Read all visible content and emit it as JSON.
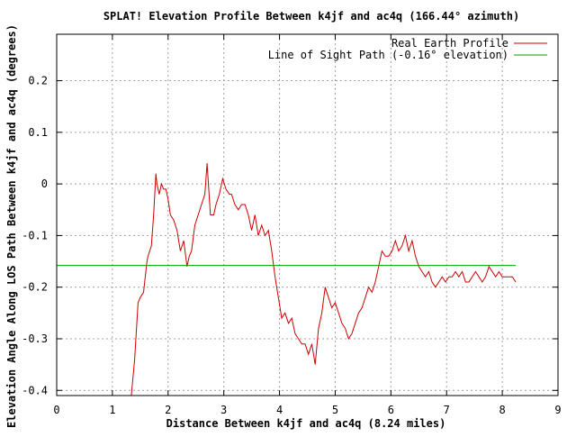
{
  "chart_data": {
    "type": "line",
    "title": "SPLAT! Elevation Profile Between k4jf and ac4q (166.44° azimuth)",
    "xlabel": "Distance Between k4jf and ac4q (8.24 miles)",
    "ylabel": "Elevation Angle Along LOS Path Between k4jf and ac4q (degrees)",
    "xlim": [
      0,
      9
    ],
    "ylim": [
      -0.41,
      0.29
    ],
    "x_ticks": [
      0,
      1,
      2,
      3,
      4,
      5,
      6,
      7,
      8,
      9
    ],
    "x_tick_labels": [
      "0",
      "1",
      "2",
      "3",
      "4",
      "5",
      "6",
      "7",
      "8",
      "9"
    ],
    "y_ticks": [
      0.2,
      0.1,
      0,
      -0.1,
      -0.2,
      -0.3,
      -0.4
    ],
    "y_tick_labels": [
      "0.2",
      "0.1",
      "0",
      "-0.1",
      "-0.2",
      "-0.3",
      "-0.4"
    ],
    "grid": true,
    "legend_position": "top-right",
    "series": [
      {
        "name": "Real Earth Profile",
        "color": "#cc0000",
        "x": [
          1.34,
          1.4,
          1.46,
          1.5,
          1.56,
          1.62,
          1.64,
          1.7,
          1.74,
          1.78,
          1.8,
          1.84,
          1.88,
          1.92,
          1.96,
          2.0,
          2.04,
          2.1,
          2.16,
          2.22,
          2.28,
          2.34,
          2.38,
          2.42,
          2.48,
          2.54,
          2.6,
          2.66,
          2.7,
          2.76,
          2.82,
          2.86,
          2.92,
          2.98,
          3.04,
          3.1,
          3.14,
          3.2,
          3.26,
          3.32,
          3.38,
          3.44,
          3.5,
          3.56,
          3.62,
          3.68,
          3.74,
          3.8,
          3.86,
          3.92,
          3.98,
          4.04,
          4.1,
          4.16,
          4.22,
          4.28,
          4.34,
          4.4,
          4.46,
          4.52,
          4.58,
          4.64,
          4.7,
          4.76,
          4.82,
          4.88,
          4.94,
          5.0,
          5.06,
          5.12,
          5.18,
          5.24,
          5.3,
          5.36,
          5.42,
          5.48,
          5.54,
          5.6,
          5.66,
          5.72,
          5.78,
          5.84,
          5.9,
          5.96,
          6.02,
          6.08,
          6.14,
          6.2,
          6.26,
          6.32,
          6.38,
          6.44,
          6.5,
          6.56,
          6.62,
          6.68,
          6.74,
          6.8,
          6.86,
          6.92,
          6.98,
          7.04,
          7.1,
          7.16,
          7.22,
          7.28,
          7.34,
          7.4,
          7.46,
          7.52,
          7.58,
          7.64,
          7.7,
          7.76,
          7.82,
          7.88,
          7.94,
          8.0,
          8.06,
          8.12,
          8.18,
          8.24
        ],
        "y": [
          -0.41,
          -0.34,
          -0.23,
          -0.22,
          -0.21,
          -0.15,
          -0.14,
          -0.12,
          -0.06,
          0.02,
          0.0,
          -0.02,
          0.0,
          -0.01,
          -0.01,
          -0.03,
          -0.06,
          -0.07,
          -0.09,
          -0.13,
          -0.11,
          -0.16,
          -0.14,
          -0.13,
          -0.08,
          -0.06,
          -0.04,
          -0.02,
          0.04,
          -0.06,
          -0.06,
          -0.04,
          -0.02,
          0.01,
          -0.01,
          -0.02,
          -0.02,
          -0.04,
          -0.05,
          -0.04,
          -0.04,
          -0.06,
          -0.09,
          -0.06,
          -0.1,
          -0.08,
          -0.1,
          -0.09,
          -0.13,
          -0.18,
          -0.22,
          -0.26,
          -0.25,
          -0.27,
          -0.26,
          -0.29,
          -0.3,
          -0.31,
          -0.31,
          -0.33,
          -0.31,
          -0.35,
          -0.28,
          -0.25,
          -0.2,
          -0.22,
          -0.24,
          -0.23,
          -0.25,
          -0.27,
          -0.28,
          -0.3,
          -0.29,
          -0.27,
          -0.25,
          -0.24,
          -0.22,
          -0.2,
          -0.21,
          -0.19,
          -0.16,
          -0.13,
          -0.14,
          -0.14,
          -0.13,
          -0.11,
          -0.13,
          -0.12,
          -0.1,
          -0.13,
          -0.11,
          -0.14,
          -0.16,
          -0.17,
          -0.18,
          -0.17,
          -0.19,
          -0.2,
          -0.19,
          -0.18,
          -0.19,
          -0.18,
          -0.18,
          -0.17,
          -0.18,
          -0.17,
          -0.19,
          -0.19,
          -0.18,
          -0.17,
          -0.18,
          -0.19,
          -0.18,
          -0.16,
          -0.17,
          -0.18,
          -0.17,
          -0.18,
          -0.18,
          -0.18,
          -0.18,
          -0.19
        ]
      },
      {
        "name": "Line of Sight Path (-0.16° elevation)",
        "color": "#00a000",
        "x": [
          0,
          8.24
        ],
        "y": [
          -0.158,
          -0.158
        ]
      }
    ]
  }
}
